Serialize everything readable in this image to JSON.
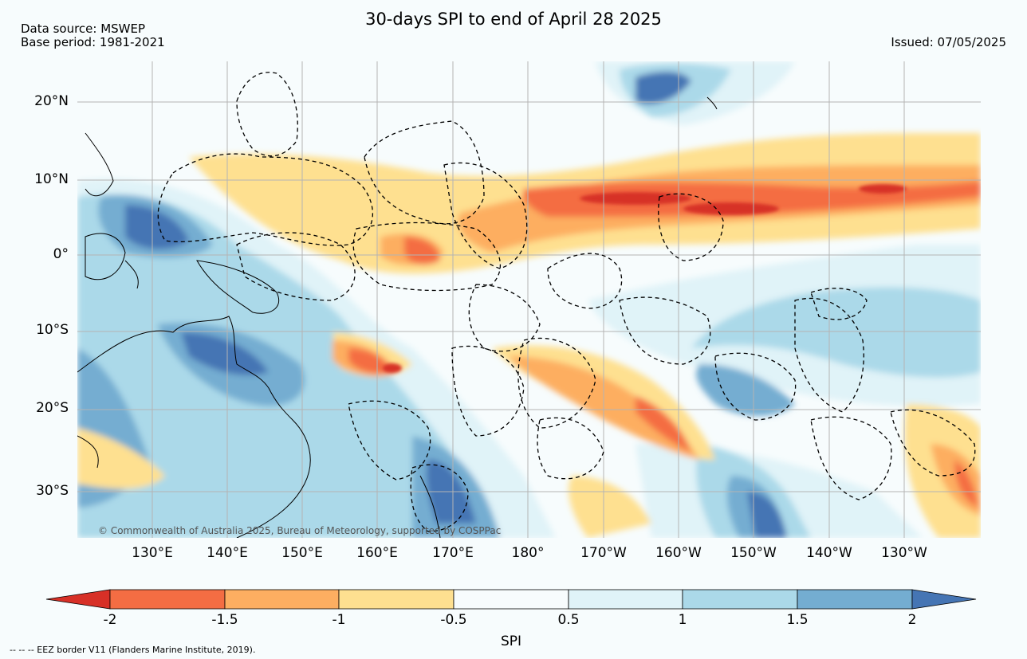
{
  "header": {
    "title": "30-days SPI to end of April 28 2025",
    "source_line": "Data source: MSWEP",
    "base_period_line": "Base period: 1981-2021",
    "issued_line": "Issued: 07/05/2025"
  },
  "map": {
    "lat_labels": [
      "20°N",
      "10°N",
      "0°",
      "10°S",
      "20°S",
      "30°S"
    ],
    "lon_labels": [
      "130°E",
      "140°E",
      "150°E",
      "160°E",
      "170°E",
      "180°",
      "170°W",
      "160°W",
      "150°W",
      "140°W",
      "130°W"
    ],
    "copyright": "© Commonwealth of Australia 2025, Bureau of Meteorology, supported by COSPPac",
    "colors": {
      "land_outline": "#000000",
      "eez_border": "#000000",
      "gridline": "#b4b4b4"
    }
  },
  "colorbar": {
    "label": "SPI",
    "ticks": [
      "-2",
      "-1.5",
      "-1",
      "-0.5",
      "0.5",
      "1",
      "1.5",
      "2"
    ],
    "colors": [
      "#d73027",
      "#f46d43",
      "#fdae61",
      "#fee090",
      "#f7fcfd",
      "#e0f3f8",
      "#abd9e9",
      "#74add1",
      "#4575b4"
    ]
  },
  "footnote": "-- -- -- EEZ border V11 (Flanders Marine Institute, 2019)."
}
